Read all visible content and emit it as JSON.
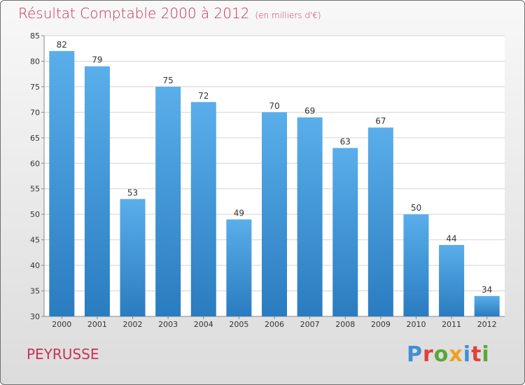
{
  "title": "Résultat Comptable 2000 à 2012",
  "subtitle": "(en milliers d'€)",
  "location": "PEYRUSSE",
  "logo": {
    "letters": [
      "P",
      "r",
      "o",
      "x",
      "i",
      "t",
      "i"
    ],
    "colors": [
      "#3f8fd6",
      "#e0413a",
      "#5aa63a",
      "#f0a020",
      "#3f8fd6",
      "#e0413a",
      "#5aa63a"
    ]
  },
  "colors": {
    "bar_top": "#5aaeea",
    "bar_bottom": "#2a7cc0",
    "title": "#c8325a"
  },
  "chart_data": {
    "type": "bar",
    "categories": [
      "2000",
      "2001",
      "2002",
      "2003",
      "2004",
      "2005",
      "2006",
      "2007",
      "2008",
      "2009",
      "2010",
      "2011",
      "2012"
    ],
    "values": [
      82,
      79,
      53,
      75,
      72,
      49,
      70,
      69,
      63,
      67,
      50,
      44,
      34
    ],
    "ylim": [
      30,
      85
    ],
    "yticks": [
      30,
      35,
      40,
      45,
      50,
      55,
      60,
      65,
      70,
      75,
      80,
      85
    ],
    "grid": true,
    "legend": "none"
  }
}
